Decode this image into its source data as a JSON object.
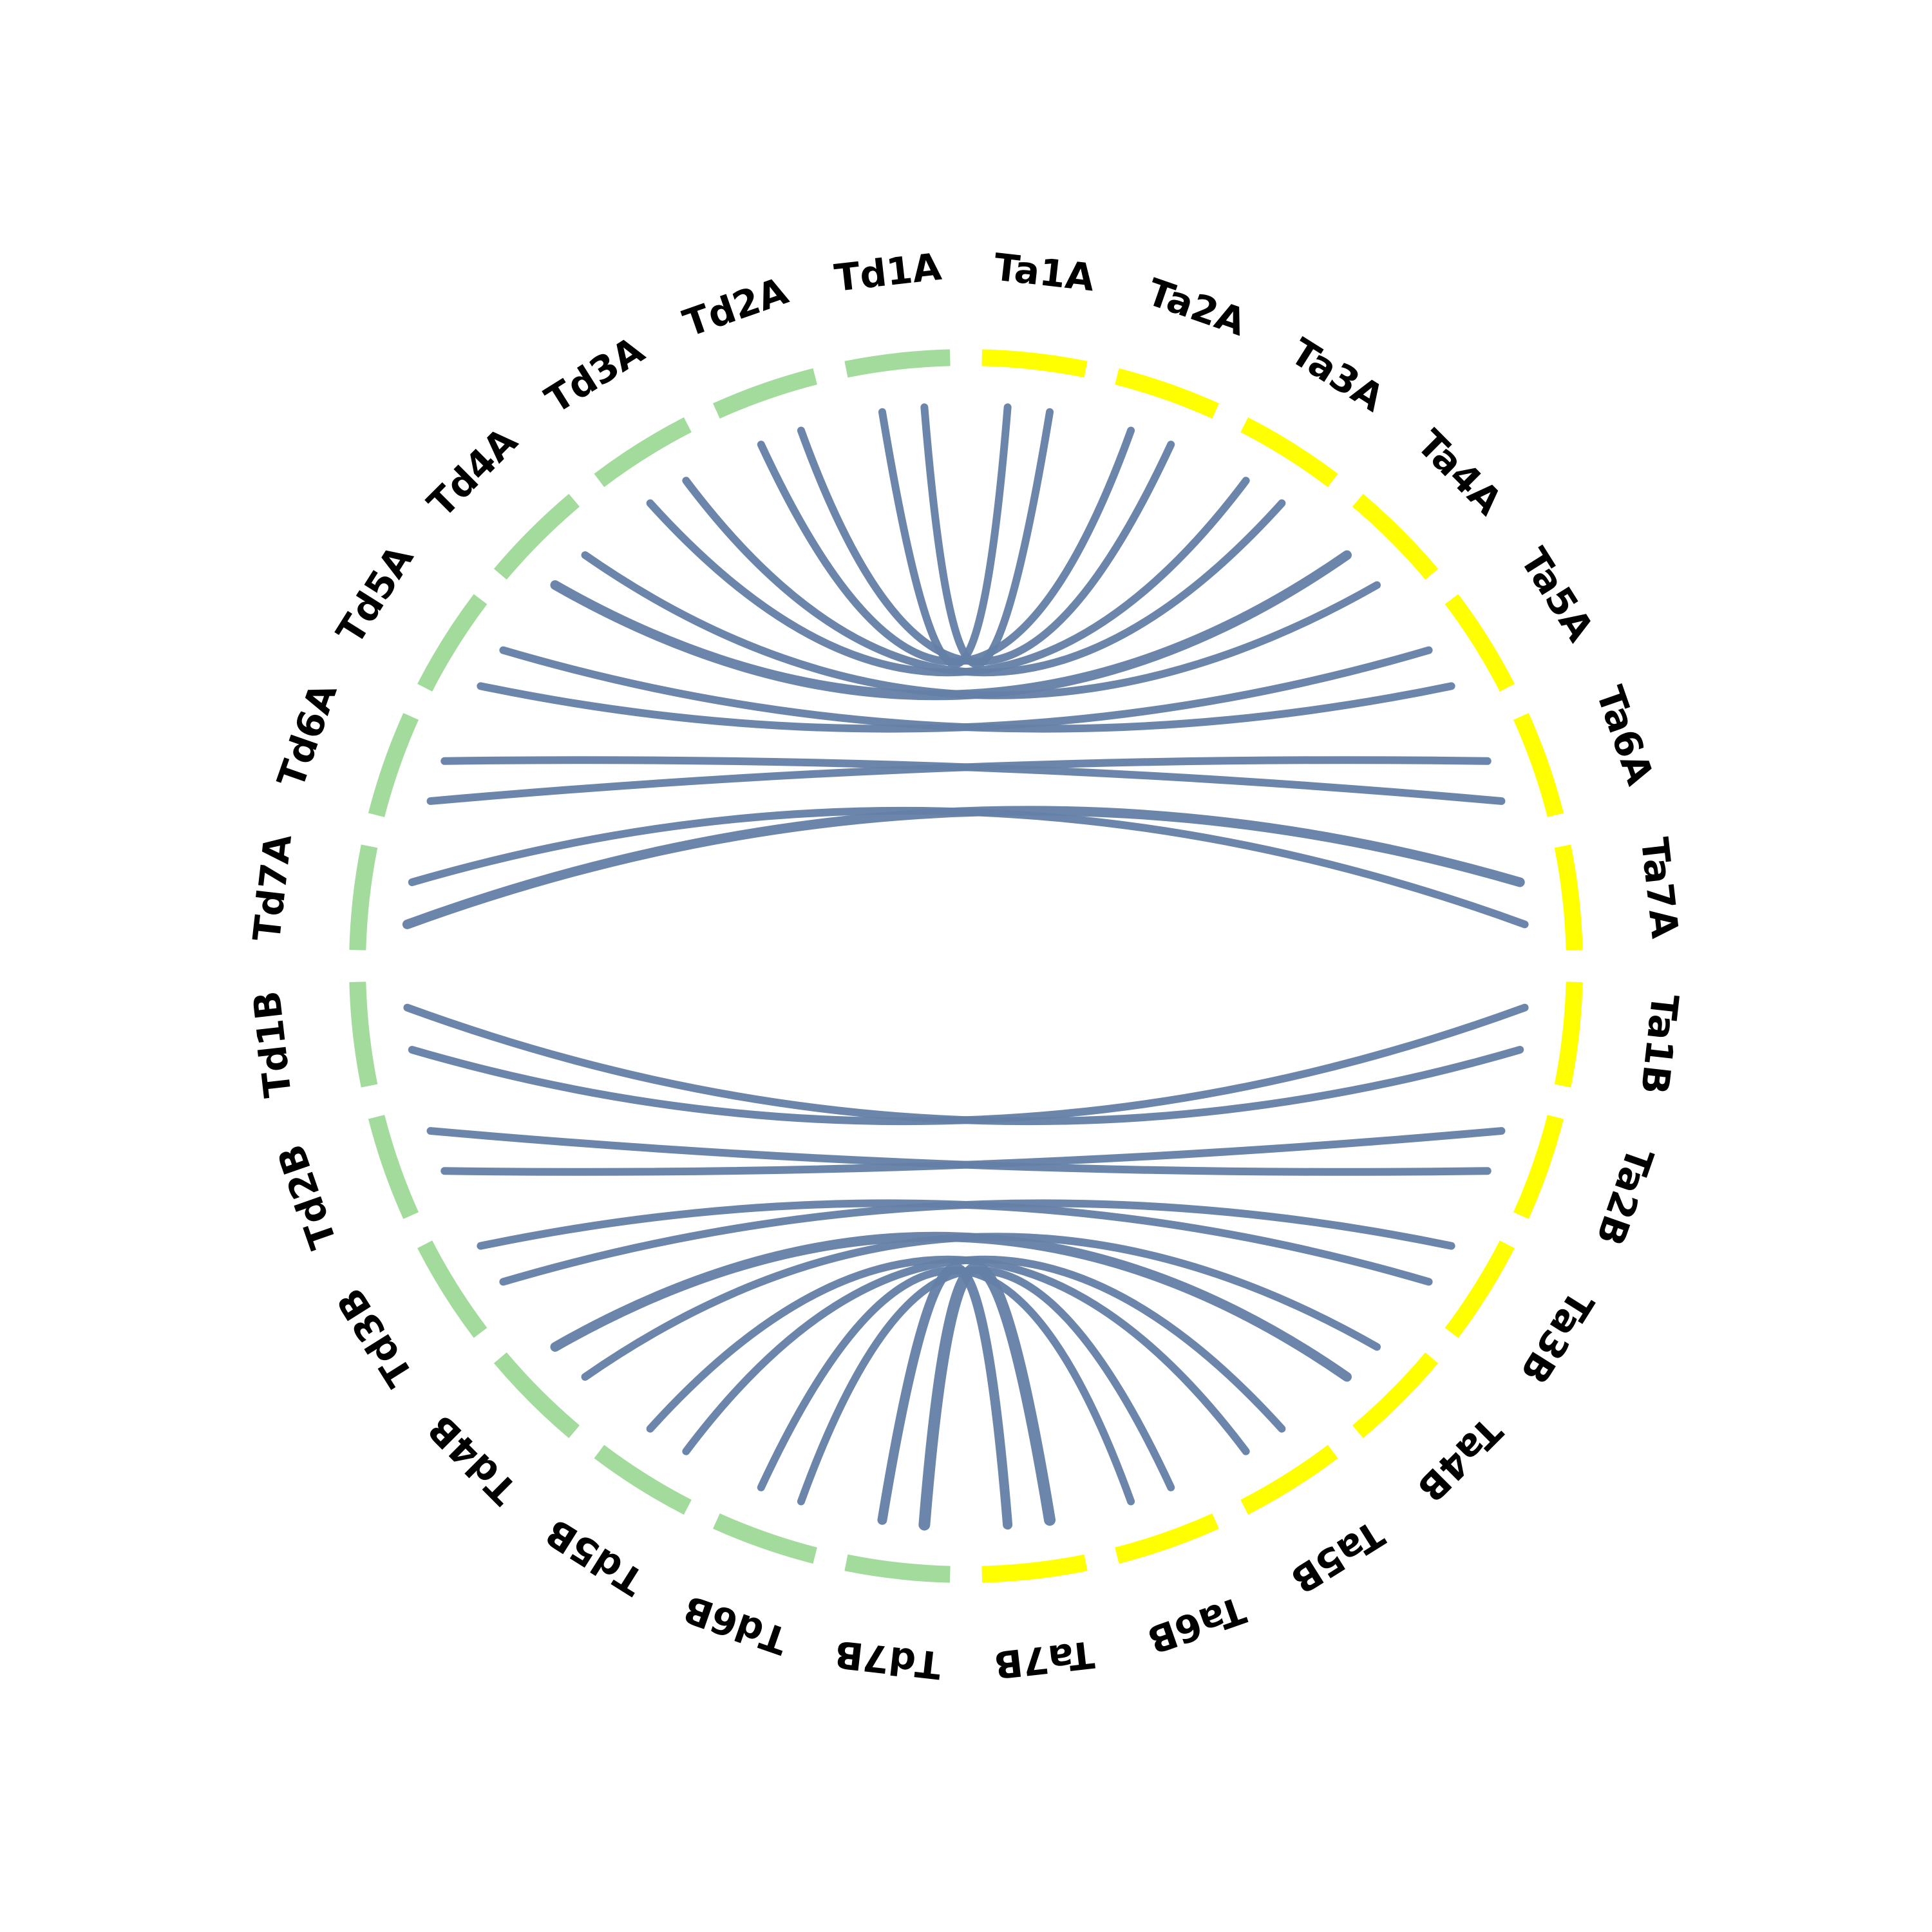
{
  "colors": {
    "background": "#ffffff",
    "link": "#647fa6",
    "subgenome_td": "#a3db9c",
    "subgenome_ta": "#ffff00",
    "label": "#000000"
  },
  "chromosomes": [
    {
      "id": "Ta1A",
      "label": "Ta1A",
      "group": "ta"
    },
    {
      "id": "Ta2A",
      "label": "Ta2A",
      "group": "ta"
    },
    {
      "id": "Ta3A",
      "label": "Ta3A",
      "group": "ta"
    },
    {
      "id": "Ta4A",
      "label": "Ta4A",
      "group": "ta"
    },
    {
      "id": "Ta5A",
      "label": "Ta5A",
      "group": "ta"
    },
    {
      "id": "Ta6A",
      "label": "Ta6A",
      "group": "ta"
    },
    {
      "id": "Ta7A",
      "label": "Ta7A",
      "group": "ta"
    },
    {
      "id": "Ta1B",
      "label": "Ta1B",
      "group": "ta"
    },
    {
      "id": "Ta2B",
      "label": "Ta2B",
      "group": "ta"
    },
    {
      "id": "Ta3B",
      "label": "Ta3B",
      "group": "ta"
    },
    {
      "id": "Ta4B",
      "label": "Ta4B",
      "group": "ta"
    },
    {
      "id": "Ta5B",
      "label": "Ta5B",
      "group": "ta"
    },
    {
      "id": "Ta6B",
      "label": "Ta6B",
      "group": "ta"
    },
    {
      "id": "Ta7B",
      "label": "Ta7B",
      "group": "ta"
    },
    {
      "id": "Td7B",
      "label": "Td7B",
      "group": "td"
    },
    {
      "id": "Td6B",
      "label": "Td6B",
      "group": "td"
    },
    {
      "id": "Td5B",
      "label": "Td5B",
      "group": "td"
    },
    {
      "id": "Td4B",
      "label": "Td4B",
      "group": "td"
    },
    {
      "id": "Td3B",
      "label": "Td3B",
      "group": "td"
    },
    {
      "id": "Td2B",
      "label": "Td2B",
      "group": "td"
    },
    {
      "id": "Td1B",
      "label": "Td1B",
      "group": "td"
    },
    {
      "id": "Td7A",
      "label": "Td7A",
      "group": "td"
    },
    {
      "id": "Td6A",
      "label": "Td6A",
      "group": "td"
    },
    {
      "id": "Td5A",
      "label": "Td5A",
      "group": "td"
    },
    {
      "id": "Td4A",
      "label": "Td4A",
      "group": "td"
    },
    {
      "id": "Td3A",
      "label": "Td3A",
      "group": "td"
    },
    {
      "id": "Td2A",
      "label": "Td2A",
      "group": "td"
    },
    {
      "id": "Td1A",
      "label": "Td1A",
      "group": "td"
    }
  ],
  "links": [
    {
      "from": "Td1A",
      "to": "Ta1A",
      "weight": 2
    },
    {
      "from": "Td1A",
      "to": "Ta1A",
      "weight": 2
    },
    {
      "from": "Td2A",
      "to": "Ta2A",
      "weight": 2
    },
    {
      "from": "Td2A",
      "to": "Ta2A",
      "weight": 2
    },
    {
      "from": "Td3A",
      "to": "Ta3A",
      "weight": 2
    },
    {
      "from": "Td3A",
      "to": "Ta3A",
      "weight": 2
    },
    {
      "from": "Td4A",
      "to": "Ta4A",
      "weight": 3
    },
    {
      "from": "Td4A",
      "to": "Ta4A",
      "weight": 2
    },
    {
      "from": "Td5A",
      "to": "Ta5A",
      "weight": 2
    },
    {
      "from": "Td5A",
      "to": "Ta5A",
      "weight": 2
    },
    {
      "from": "Td6A",
      "to": "Ta6A",
      "weight": 2
    },
    {
      "from": "Td6A",
      "to": "Ta6A",
      "weight": 2
    },
    {
      "from": "Td7A",
      "to": "Ta7A",
      "weight": 3
    },
    {
      "from": "Td7A",
      "to": "Ta7A",
      "weight": 2
    },
    {
      "from": "Td1B",
      "to": "Ta1B",
      "weight": 2
    },
    {
      "from": "Td1B",
      "to": "Ta1B",
      "weight": 2
    },
    {
      "from": "Td2B",
      "to": "Ta2B",
      "weight": 2
    },
    {
      "from": "Td2B",
      "to": "Ta2B",
      "weight": 2
    },
    {
      "from": "Td3B",
      "to": "Ta3B",
      "weight": 2
    },
    {
      "from": "Td3B",
      "to": "Ta3B",
      "weight": 2
    },
    {
      "from": "Td4B",
      "to": "Ta4B",
      "weight": 2
    },
    {
      "from": "Td4B",
      "to": "Ta4B",
      "weight": 3
    },
    {
      "from": "Td5B",
      "to": "Ta5B",
      "weight": 2
    },
    {
      "from": "Td5B",
      "to": "Ta5B",
      "weight": 2
    },
    {
      "from": "Td6B",
      "to": "Ta6B",
      "weight": 2
    },
    {
      "from": "Td6B",
      "to": "Ta6B",
      "weight": 2
    },
    {
      "from": "Td7B",
      "to": "Ta7B",
      "weight": 4
    },
    {
      "from": "Td7B",
      "to": "Ta7B",
      "weight": 3
    }
  ]
}
